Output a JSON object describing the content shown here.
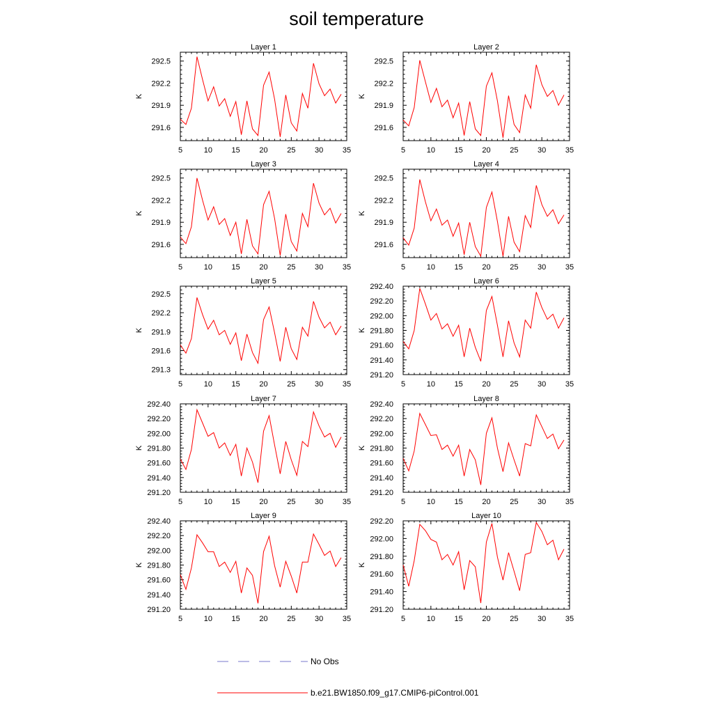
{
  "title": "soil temperature",
  "legend": [
    {
      "label": "No Obs",
      "color": "#7777cc",
      "dash": "dashed"
    },
    {
      "label": "b.e21.BW1850.f09_g17.CMIP6-piControl.001",
      "color": "#ff0000",
      "dash": "solid"
    }
  ],
  "chart_data": [
    {
      "type": "line",
      "title": "Layer 1",
      "ylabel": "K",
      "xlim": [
        5,
        35
      ],
      "ylim": [
        291.42,
        292.62
      ],
      "xticks": [
        5,
        10,
        15,
        20,
        25,
        30,
        35
      ],
      "yticks": [
        291.6,
        291.9,
        292.2,
        292.5
      ],
      "ytick_labels": [
        "291.6",
        "291.9",
        "292.2",
        "292.5"
      ],
      "x": [
        5,
        6,
        7,
        8,
        9,
        10,
        11,
        12,
        13,
        14,
        15,
        16,
        17,
        18,
        19,
        20,
        21,
        22,
        23,
        24,
        25,
        26,
        27,
        28,
        29,
        30,
        31,
        32,
        33,
        34
      ],
      "series": [
        {
          "name": "b.e21.BW1850.f09_g17.CMIP6-piControl.001",
          "color": "#ff0000",
          "values": [
            291.71,
            291.64,
            291.86,
            292.56,
            292.25,
            291.96,
            292.15,
            291.89,
            291.99,
            291.75,
            291.95,
            291.5,
            291.96,
            291.58,
            291.49,
            292.17,
            292.35,
            291.98,
            291.47,
            292.04,
            291.66,
            291.55,
            292.06,
            291.86,
            292.47,
            292.19,
            292.03,
            292.12,
            291.93,
            292.05
          ]
        }
      ]
    },
    {
      "type": "line",
      "title": "Layer 2",
      "ylabel": "K",
      "xlim": [
        5,
        35
      ],
      "ylim": [
        291.42,
        292.62
      ],
      "xticks": [
        5,
        10,
        15,
        20,
        25,
        30,
        35
      ],
      "yticks": [
        291.6,
        291.9,
        292.2,
        292.5
      ],
      "ytick_labels": [
        "291.6",
        "291.9",
        "292.2",
        "292.5"
      ],
      "x": [
        5,
        6,
        7,
        8,
        9,
        10,
        11,
        12,
        13,
        14,
        15,
        16,
        17,
        18,
        19,
        20,
        21,
        22,
        23,
        24,
        25,
        26,
        27,
        28,
        29,
        30,
        31,
        32,
        33,
        34
      ],
      "series": [
        {
          "name": "b.e21.BW1850.f09_g17.CMIP6-piControl.001",
          "color": "#ff0000",
          "values": [
            291.7,
            291.62,
            291.87,
            292.51,
            292.22,
            291.94,
            292.13,
            291.88,
            291.97,
            291.73,
            291.93,
            291.49,
            291.95,
            291.58,
            291.49,
            292.16,
            292.34,
            291.96,
            291.46,
            292.03,
            291.64,
            291.53,
            292.04,
            291.86,
            292.45,
            292.18,
            292.02,
            292.1,
            291.9,
            292.04
          ]
        }
      ]
    },
    {
      "type": "line",
      "title": "Layer 3",
      "ylabel": "K",
      "xlim": [
        5,
        35
      ],
      "ylim": [
        291.42,
        292.62
      ],
      "xticks": [
        5,
        10,
        15,
        20,
        25,
        30,
        35
      ],
      "yticks": [
        291.6,
        291.9,
        292.2,
        292.5
      ],
      "ytick_labels": [
        "291.6",
        "291.9",
        "292.2",
        "292.5"
      ],
      "x": [
        5,
        6,
        7,
        8,
        9,
        10,
        11,
        12,
        13,
        14,
        15,
        16,
        17,
        18,
        19,
        20,
        21,
        22,
        23,
        24,
        25,
        26,
        27,
        28,
        29,
        30,
        31,
        32,
        33,
        34
      ],
      "series": [
        {
          "name": "b.e21.BW1850.f09_g17.CMIP6-piControl.001",
          "color": "#ff0000",
          "values": [
            291.7,
            291.61,
            291.84,
            292.5,
            292.2,
            291.93,
            292.11,
            291.87,
            291.95,
            291.72,
            291.9,
            291.47,
            291.94,
            291.58,
            291.47,
            292.14,
            292.32,
            291.95,
            291.45,
            292.01,
            291.64,
            291.51,
            292.02,
            291.84,
            292.43,
            292.16,
            292.0,
            292.09,
            291.89,
            292.02
          ]
        }
      ]
    },
    {
      "type": "line",
      "title": "Layer 4",
      "ylabel": "K",
      "xlim": [
        5,
        35
      ],
      "ylim": [
        291.42,
        292.62
      ],
      "xticks": [
        5,
        10,
        15,
        20,
        25,
        30,
        35
      ],
      "yticks": [
        291.6,
        291.9,
        292.2,
        292.5
      ],
      "ytick_labels": [
        "291.6",
        "291.9",
        "292.2",
        "292.5"
      ],
      "x": [
        5,
        6,
        7,
        8,
        9,
        10,
        11,
        12,
        13,
        14,
        15,
        16,
        17,
        18,
        19,
        20,
        21,
        22,
        23,
        24,
        25,
        26,
        27,
        28,
        29,
        30,
        31,
        32,
        33,
        34
      ],
      "series": [
        {
          "name": "b.e21.BW1850.f09_g17.CMIP6-piControl.001",
          "color": "#ff0000",
          "values": [
            291.69,
            291.59,
            291.82,
            292.48,
            292.18,
            291.92,
            292.08,
            291.86,
            291.93,
            291.71,
            291.89,
            291.46,
            291.9,
            291.57,
            291.44,
            292.1,
            292.31,
            291.91,
            291.44,
            291.98,
            291.63,
            291.5,
            291.99,
            291.83,
            292.4,
            292.14,
            291.98,
            292.07,
            291.88,
            292.0
          ]
        }
      ]
    },
    {
      "type": "line",
      "title": "Layer 5",
      "ylabel": "K",
      "xlim": [
        5,
        35
      ],
      "ylim": [
        291.22,
        292.62
      ],
      "xticks": [
        5,
        10,
        15,
        20,
        25,
        30,
        35
      ],
      "yticks": [
        291.3,
        291.6,
        291.9,
        292.2,
        292.5
      ],
      "ytick_labels": [
        "291.3",
        "291.6",
        "291.9",
        "292.2",
        "292.5"
      ],
      "x": [
        5,
        6,
        7,
        8,
        9,
        10,
        11,
        12,
        13,
        14,
        15,
        16,
        17,
        18,
        19,
        20,
        21,
        22,
        23,
        24,
        25,
        26,
        27,
        28,
        29,
        30,
        31,
        32,
        33,
        34
      ],
      "series": [
        {
          "name": "b.e21.BW1850.f09_g17.CMIP6-piControl.001",
          "color": "#ff0000",
          "values": [
            291.69,
            291.56,
            291.79,
            292.44,
            292.17,
            291.94,
            292.08,
            291.85,
            291.92,
            291.7,
            291.88,
            291.44,
            291.86,
            291.57,
            291.4,
            292.09,
            292.29,
            291.88,
            291.43,
            291.97,
            291.63,
            291.46,
            291.97,
            291.83,
            292.38,
            292.13,
            291.96,
            292.05,
            291.85,
            291.99
          ]
        }
      ]
    },
    {
      "type": "line",
      "title": "Layer 6",
      "ylabel": "K",
      "xlim": [
        5,
        35
      ],
      "ylim": [
        291.2,
        292.4
      ],
      "xticks": [
        5,
        10,
        15,
        20,
        25,
        30,
        35
      ],
      "yticks": [
        291.2,
        291.4,
        291.6,
        291.8,
        292.0,
        292.2,
        292.4
      ],
      "ytick_labels": [
        "291.20",
        "291.40",
        "291.60",
        "291.80",
        "292.00",
        "292.20",
        "292.40"
      ],
      "x": [
        5,
        6,
        7,
        8,
        9,
        10,
        11,
        12,
        13,
        14,
        15,
        16,
        17,
        18,
        19,
        20,
        21,
        22,
        23,
        24,
        25,
        26,
        27,
        28,
        29,
        30,
        31,
        32,
        33,
        34
      ],
      "series": [
        {
          "name": "b.e21.BW1850.f09_g17.CMIP6-piControl.001",
          "color": "#ff0000",
          "values": [
            291.65,
            291.55,
            291.8,
            292.37,
            292.16,
            291.94,
            292.03,
            291.82,
            291.89,
            291.72,
            291.87,
            291.44,
            291.83,
            291.57,
            291.38,
            292.07,
            292.26,
            291.87,
            291.44,
            291.93,
            291.63,
            291.44,
            291.94,
            291.83,
            292.32,
            292.11,
            291.95,
            292.02,
            291.83,
            291.97
          ]
        }
      ]
    },
    {
      "type": "line",
      "title": "Layer 7",
      "ylabel": "K",
      "xlim": [
        5,
        35
      ],
      "ylim": [
        291.2,
        292.4
      ],
      "xticks": [
        5,
        10,
        15,
        20,
        25,
        30,
        35
      ],
      "yticks": [
        291.2,
        291.4,
        291.6,
        291.8,
        292.0,
        292.2,
        292.4
      ],
      "ytick_labels": [
        "291.20",
        "291.40",
        "291.60",
        "291.80",
        "292.00",
        "292.20",
        "292.40"
      ],
      "x": [
        5,
        6,
        7,
        8,
        9,
        10,
        11,
        12,
        13,
        14,
        15,
        16,
        17,
        18,
        19,
        20,
        21,
        22,
        23,
        24,
        25,
        26,
        27,
        28,
        29,
        30,
        31,
        32,
        33,
        34
      ],
      "series": [
        {
          "name": "b.e21.BW1850.f09_g17.CMIP6-piControl.001",
          "color": "#ff0000",
          "values": [
            291.65,
            291.51,
            291.78,
            292.32,
            292.14,
            291.96,
            292.01,
            291.8,
            291.87,
            291.7,
            291.85,
            291.42,
            291.8,
            291.61,
            291.33,
            292.03,
            292.24,
            291.84,
            291.45,
            291.89,
            291.64,
            291.43,
            291.89,
            291.82,
            292.29,
            292.1,
            291.95,
            292.0,
            291.81,
            291.95
          ]
        }
      ]
    },
    {
      "type": "line",
      "title": "Layer 8",
      "ylabel": "K",
      "xlim": [
        5,
        35
      ],
      "ylim": [
        291.2,
        292.4
      ],
      "xticks": [
        5,
        10,
        15,
        20,
        25,
        30,
        35
      ],
      "yticks": [
        291.2,
        291.4,
        291.6,
        291.8,
        292.0,
        292.2,
        292.4
      ],
      "ytick_labels": [
        "291.20",
        "291.40",
        "291.60",
        "291.80",
        "292.00",
        "292.20",
        "292.40"
      ],
      "x": [
        5,
        6,
        7,
        8,
        9,
        10,
        11,
        12,
        13,
        14,
        15,
        16,
        17,
        18,
        19,
        20,
        21,
        22,
        23,
        24,
        25,
        26,
        27,
        28,
        29,
        30,
        31,
        32,
        33,
        34
      ],
      "series": [
        {
          "name": "b.e21.BW1850.f09_g17.CMIP6-piControl.001",
          "color": "#ff0000",
          "values": [
            291.66,
            291.49,
            291.76,
            292.27,
            292.12,
            291.97,
            291.98,
            291.78,
            291.84,
            291.69,
            291.84,
            291.42,
            291.78,
            291.64,
            291.3,
            292.0,
            292.21,
            291.8,
            291.48,
            291.87,
            291.64,
            291.42,
            291.86,
            291.83,
            292.25,
            292.09,
            291.93,
            291.99,
            291.79,
            291.91
          ]
        }
      ]
    },
    {
      "type": "line",
      "title": "Layer 9",
      "ylabel": "K",
      "xlim": [
        5,
        35
      ],
      "ylim": [
        291.2,
        292.4
      ],
      "xticks": [
        5,
        10,
        15,
        20,
        25,
        30,
        35
      ],
      "yticks": [
        291.2,
        291.4,
        291.6,
        291.8,
        292.0,
        292.2,
        292.4
      ],
      "ytick_labels": [
        "291.20",
        "291.40",
        "291.60",
        "291.80",
        "292.00",
        "292.20",
        "292.40"
      ],
      "x": [
        5,
        6,
        7,
        8,
        9,
        10,
        11,
        12,
        13,
        14,
        15,
        16,
        17,
        18,
        19,
        20,
        21,
        22,
        23,
        24,
        25,
        26,
        27,
        28,
        29,
        30,
        31,
        32,
        33,
        34
      ],
      "series": [
        {
          "name": "b.e21.BW1850.f09_g17.CMIP6-piControl.001",
          "color": "#ff0000",
          "values": [
            291.67,
            291.47,
            291.76,
            292.21,
            292.1,
            291.98,
            291.98,
            291.78,
            291.84,
            291.7,
            291.85,
            291.42,
            291.76,
            291.66,
            291.28,
            291.98,
            292.19,
            291.79,
            291.5,
            291.85,
            291.65,
            291.42,
            291.84,
            291.84,
            292.22,
            292.08,
            291.93,
            291.99,
            291.78,
            291.9
          ]
        }
      ]
    },
    {
      "type": "line",
      "title": "Layer 10",
      "ylabel": "K",
      "xlim": [
        5,
        35
      ],
      "ylim": [
        291.2,
        292.2
      ],
      "xticks": [
        5,
        10,
        15,
        20,
        25,
        30,
        35
      ],
      "yticks": [
        291.2,
        291.4,
        291.6,
        291.8,
        292.0,
        292.2
      ],
      "ytick_labels": [
        "291.20",
        "291.40",
        "291.60",
        "291.80",
        "292.00",
        "292.20"
      ],
      "x": [
        5,
        6,
        7,
        8,
        9,
        10,
        11,
        12,
        13,
        14,
        15,
        16,
        17,
        18,
        19,
        20,
        21,
        22,
        23,
        24,
        25,
        26,
        27,
        28,
        29,
        30,
        31,
        32,
        33,
        34
      ],
      "series": [
        {
          "name": "b.e21.BW1850.f09_g17.CMIP6-piControl.001",
          "color": "#ff0000",
          "values": [
            291.7,
            291.46,
            291.75,
            292.16,
            292.09,
            291.99,
            291.96,
            291.76,
            291.82,
            291.7,
            291.85,
            291.42,
            291.75,
            291.68,
            291.27,
            291.96,
            292.17,
            291.79,
            291.53,
            291.84,
            291.63,
            291.41,
            291.82,
            291.84,
            292.18,
            292.08,
            291.93,
            291.98,
            291.76,
            291.88
          ]
        }
      ]
    }
  ]
}
